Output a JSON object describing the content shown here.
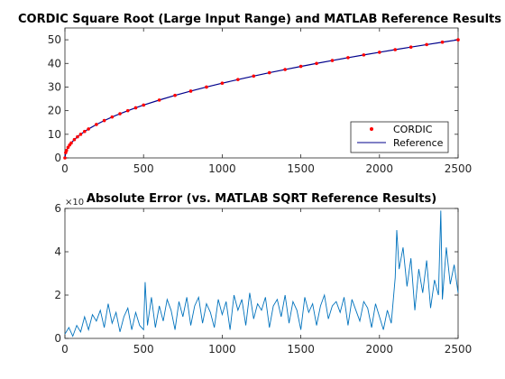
{
  "chart_data": [
    {
      "type": "line",
      "title": "CORDIC Square Root (Large Input Range) and MATLAB Reference Results",
      "xlabel": "",
      "ylabel": "",
      "xlim": [
        0,
        2500
      ],
      "ylim": [
        0,
        55
      ],
      "xticks": [
        0,
        500,
        1000,
        1500,
        2000,
        2500
      ],
      "xtick_labels": [
        "0",
        "500",
        "1000",
        "1500",
        "2000",
        "2500"
      ],
      "yticks": [
        0,
        10,
        20,
        30,
        40,
        50
      ],
      "ytick_labels": [
        "0",
        "10",
        "20",
        "30",
        "40",
        "50"
      ],
      "grid": false,
      "legend_position": "bottom-right",
      "series": [
        {
          "name": "CORDIC",
          "style": "markers",
          "color": "#ff0000",
          "x": [
            0,
            5,
            10,
            20,
            30,
            40,
            60,
            80,
            100,
            125,
            150,
            200,
            250,
            300,
            350,
            400,
            450,
            500,
            600,
            700,
            800,
            900,
            1000,
            1100,
            1200,
            1300,
            1400,
            1500,
            1600,
            1700,
            1800,
            1900,
            2000,
            2100,
            2200,
            2300,
            2400,
            2500
          ],
          "y": [
            0,
            2.24,
            3.16,
            4.47,
            5.48,
            6.32,
            7.75,
            8.94,
            10.0,
            11.18,
            12.25,
            14.14,
            15.81,
            17.32,
            18.71,
            20.0,
            21.21,
            22.36,
            24.49,
            26.46,
            28.28,
            30.0,
            31.62,
            33.17,
            34.64,
            36.06,
            37.42,
            38.73,
            40.0,
            41.23,
            42.43,
            43.59,
            44.72,
            45.83,
            46.9,
            47.96,
            48.99,
            50.0
          ]
        },
        {
          "name": "Reference",
          "style": "line",
          "color": "#00008b",
          "x": [
            0,
            5,
            10,
            20,
            30,
            40,
            60,
            80,
            100,
            125,
            150,
            200,
            250,
            300,
            350,
            400,
            450,
            500,
            600,
            700,
            800,
            900,
            1000,
            1100,
            1200,
            1300,
            1400,
            1500,
            1600,
            1700,
            1800,
            1900,
            2000,
            2100,
            2200,
            2300,
            2400,
            2500
          ],
          "y": [
            0,
            2.24,
            3.16,
            4.47,
            5.48,
            6.32,
            7.75,
            8.94,
            10.0,
            11.18,
            12.25,
            14.14,
            15.81,
            17.32,
            18.71,
            20.0,
            21.21,
            22.36,
            24.49,
            26.46,
            28.28,
            30.0,
            31.62,
            33.17,
            34.64,
            36.06,
            37.42,
            38.73,
            40.0,
            41.23,
            42.43,
            43.59,
            44.72,
            45.83,
            46.9,
            47.96,
            48.99,
            50.0
          ]
        }
      ]
    },
    {
      "type": "line",
      "title": "Absolute Error (vs. MATLAB SQRT Reference Results)",
      "xlabel": "",
      "ylabel": "",
      "xlim": [
        0,
        2500
      ],
      "ylim": [
        0,
        6
      ],
      "xticks": [
        0,
        500,
        1000,
        1500,
        2000,
        2500
      ],
      "xtick_labels": [
        "0",
        "500",
        "1000",
        "1500",
        "2000",
        "2500"
      ],
      "yticks": [
        0,
        2,
        4,
        6
      ],
      "ytick_labels": [
        "0",
        "2",
        "4",
        "6"
      ],
      "y_exponent_label": "×10",
      "grid": false,
      "series": [
        {
          "style": "line",
          "color": "#0072bd",
          "x": [
            0,
            25,
            50,
            75,
            100,
            125,
            150,
            175,
            200,
            225,
            250,
            275,
            300,
            325,
            350,
            375,
            400,
            425,
            450,
            475,
            500,
            510,
            525,
            550,
            575,
            600,
            625,
            650,
            675,
            700,
            725,
            750,
            775,
            800,
            825,
            850,
            875,
            900,
            925,
            950,
            975,
            1000,
            1025,
            1050,
            1075,
            1100,
            1125,
            1150,
            1175,
            1200,
            1225,
            1250,
            1275,
            1300,
            1325,
            1350,
            1375,
            1400,
            1425,
            1450,
            1475,
            1500,
            1525,
            1550,
            1575,
            1600,
            1625,
            1650,
            1675,
            1700,
            1725,
            1750,
            1775,
            1800,
            1825,
            1850,
            1875,
            1900,
            1925,
            1950,
            1975,
            2000,
            2025,
            2050,
            2075,
            2100,
            2110,
            2125,
            2150,
            2175,
            2200,
            2225,
            2250,
            2275,
            2300,
            2325,
            2350,
            2375,
            2390,
            2400,
            2425,
            2450,
            2475,
            2500
          ],
          "y": [
            0.2,
            0.5,
            0.1,
            0.6,
            0.3,
            1.0,
            0.4,
            1.1,
            0.8,
            1.3,
            0.5,
            1.6,
            0.7,
            1.2,
            0.3,
            1.0,
            1.4,
            0.4,
            1.2,
            0.6,
            0.4,
            2.6,
            0.6,
            1.9,
            0.5,
            1.5,
            0.8,
            1.8,
            1.3,
            0.4,
            1.7,
            1.0,
            1.9,
            0.6,
            1.5,
            1.9,
            0.7,
            1.6,
            1.2,
            0.5,
            1.8,
            1.1,
            1.7,
            0.4,
            2.0,
            1.3,
            1.8,
            0.6,
            2.1,
            0.9,
            1.6,
            1.3,
            1.9,
            0.5,
            1.5,
            1.8,
            1.0,
            2.0,
            0.7,
            1.7,
            1.3,
            0.4,
            1.9,
            1.2,
            1.6,
            0.6,
            1.5,
            2.0,
            0.9,
            1.5,
            1.7,
            1.2,
            1.9,
            0.6,
            1.8,
            1.3,
            0.8,
            1.7,
            1.4,
            0.5,
            1.6,
            1.0,
            0.4,
            1.3,
            0.7,
            2.8,
            5.0,
            3.2,
            4.2,
            2.4,
            3.7,
            1.3,
            3.2,
            2.1,
            3.6,
            1.4,
            2.7,
            2.0,
            5.9,
            1.8,
            4.2,
            2.5,
            3.4,
            2.1
          ]
        }
      ]
    }
  ]
}
